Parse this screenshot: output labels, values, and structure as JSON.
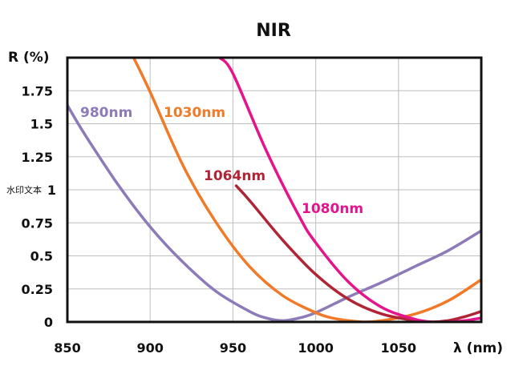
{
  "chart_data": {
    "type": "line",
    "title": "NIR",
    "ylabel": "R (%)",
    "xlabel": "λ (nm)",
    "xlim": [
      850,
      1100
    ],
    "ylim": [
      0,
      2
    ],
    "x_ticks": [
      "850",
      "900",
      "950",
      "1000",
      "1050"
    ],
    "y_ticks": [
      "0",
      "0.25",
      "0.5",
      "0.75",
      "1",
      "1.25",
      "1.5",
      "1.75"
    ],
    "grid": true,
    "watermark": "水印文本",
    "series": [
      {
        "name": "980nm",
        "color": "#8c7bb8",
        "x": [
          850,
          860,
          880,
          900,
          920,
          940,
          960,
          970,
          980,
          990,
          1000,
          1020,
          1040,
          1060,
          1080,
          1100
        ],
        "y": [
          1.64,
          1.43,
          1.05,
          0.72,
          0.45,
          0.23,
          0.08,
          0.03,
          0.01,
          0.03,
          0.07,
          0.19,
          0.3,
          0.42,
          0.54,
          0.69
        ]
      },
      {
        "name": "1030nm",
        "color": "#f07a28",
        "x": [
          890,
          900,
          920,
          940,
          960,
          980,
          1000,
          1010,
          1020,
          1030,
          1040,
          1060,
          1080,
          1100
        ],
        "y": [
          2.0,
          1.74,
          1.18,
          0.75,
          0.42,
          0.2,
          0.07,
          0.03,
          0.01,
          0.0,
          0.01,
          0.06,
          0.16,
          0.32
        ]
      },
      {
        "name": "1064nm",
        "color": "#b02535",
        "x": [
          952,
          960,
          980,
          1000,
          1020,
          1040,
          1060,
          1070,
          1080,
          1090,
          1100
        ],
        "y": [
          1.03,
          0.92,
          0.62,
          0.36,
          0.17,
          0.06,
          0.01,
          0.0,
          0.01,
          0.04,
          0.08
        ]
      },
      {
        "name": "1080nm",
        "color": "#e5148a",
        "x": [
          942,
          950,
          970,
          990,
          1000,
          1020,
          1040,
          1060,
          1070,
          1080,
          1090,
          1100
        ],
        "y": [
          2.0,
          1.88,
          1.3,
          0.8,
          0.6,
          0.3,
          0.11,
          0.02,
          0.0,
          0.0,
          0.01,
          0.03
        ]
      }
    ]
  }
}
